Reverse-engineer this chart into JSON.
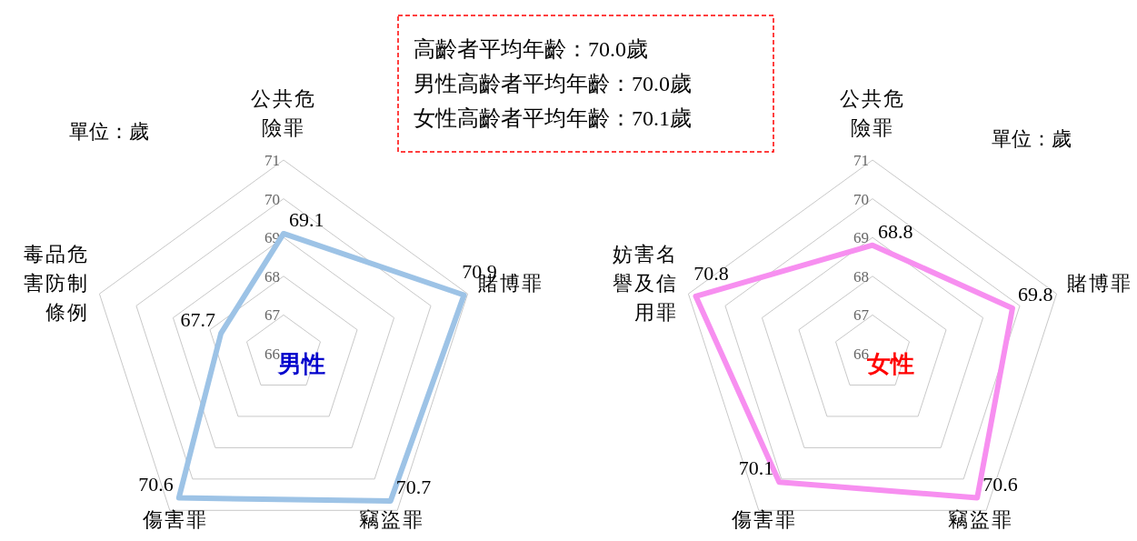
{
  "chart_data": [
    {
      "type": "radar",
      "categories": [
        "公共危險罪",
        "賭博罪",
        "竊盜罪",
        "傷害罪",
        "毒品危害防制條例"
      ],
      "series": [
        {
          "color": "#9dc3e6",
          "values": [
            69.1,
            70.9,
            70.7,
            70.6,
            67.7
          ]
        }
      ],
      "ylim": [
        66,
        71
      ],
      "yticks": [
        66,
        67,
        68,
        69,
        70,
        71
      ],
      "data_labels": true,
      "annotations": [
        "單位：歲",
        "男性"
      ]
    },
    {
      "type": "other",
      "annotations": [
        "高齡者平均年齡：70.0歲",
        "男性高齡者平均年齡：70.0歲",
        "女性高齡者平均年齡：70.1歲"
      ]
    },
    {
      "type": "radar",
      "categories": [
        "公共危險罪",
        "賭博罪",
        "竊盜罪",
        "傷害罪",
        "妨害名譽及信用罪"
      ],
      "series": [
        {
          "color": "#f78ff0",
          "values": [
            68.8,
            69.8,
            70.6,
            70.1,
            70.8
          ]
        }
      ],
      "ylim": [
        66,
        71
      ],
      "yticks": [
        66,
        67,
        68,
        69,
        70,
        71
      ],
      "data_labels": true,
      "annotations": [
        "單位：歲",
        "女性"
      ]
    }
  ]
}
